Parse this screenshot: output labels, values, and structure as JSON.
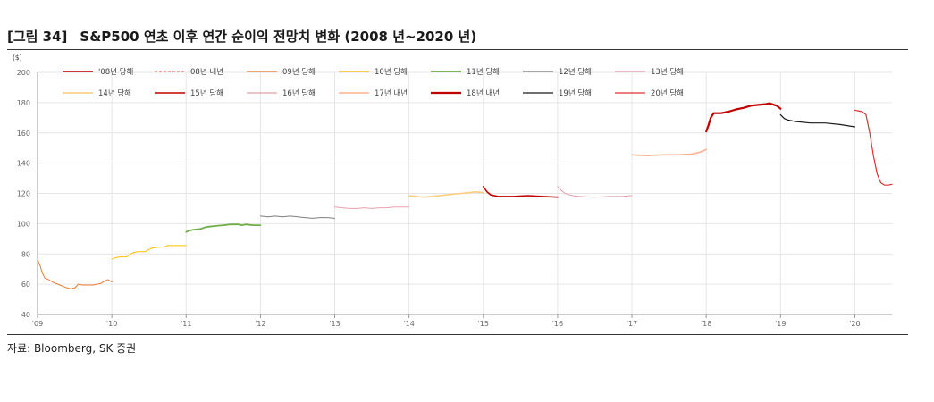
{
  "caption": {
    "figure_no": "[그림 34]",
    "title": "S&P500 연초 이후 연간 순이익 전망치 변화 (2008 년~2020 년)"
  },
  "source": "자료: Bloomberg, SK 증권",
  "chart_data": {
    "type": "line",
    "unit_label": "($)",
    "ylim": [
      40,
      200
    ],
    "yticks": [
      40,
      60,
      80,
      100,
      120,
      140,
      160,
      180,
      200
    ],
    "xlim": [
      2009,
      2020.5
    ],
    "xticks": [
      {
        "value": 2009,
        "label": "'09"
      },
      {
        "value": 2010,
        "label": "'10"
      },
      {
        "value": 2011,
        "label": "'11"
      },
      {
        "value": 2012,
        "label": "'12"
      },
      {
        "value": 2013,
        "label": "'13"
      },
      {
        "value": 2014,
        "label": "'14"
      },
      {
        "value": 2015,
        "label": "'15"
      },
      {
        "value": 2016,
        "label": "'16"
      },
      {
        "value": 2017,
        "label": "'17"
      },
      {
        "value": 2018,
        "label": "'18"
      },
      {
        "value": 2019,
        "label": "'19"
      },
      {
        "value": 2020,
        "label": "'20"
      }
    ],
    "grid": true,
    "legend_position": "top",
    "series": [
      {
        "name": "'08년 당해",
        "color": "#c00000",
        "width": 1.4,
        "dash": "",
        "points": []
      },
      {
        "name": "08년 내년",
        "color": "#f08080",
        "width": 1,
        "dash": "3,2",
        "points": []
      },
      {
        "name": "09년 당해",
        "color": "#ed7d31",
        "width": 1,
        "dash": "",
        "points": [
          [
            2009.0,
            76
          ],
          [
            2009.03,
            73
          ],
          [
            2009.06,
            68
          ],
          [
            2009.1,
            64
          ],
          [
            2009.15,
            63
          ],
          [
            2009.2,
            61.5
          ],
          [
            2009.25,
            60.5
          ],
          [
            2009.3,
            59.5
          ],
          [
            2009.35,
            58.5
          ],
          [
            2009.4,
            57.5
          ],
          [
            2009.45,
            57
          ],
          [
            2009.5,
            57.5
          ],
          [
            2009.55,
            60
          ],
          [
            2009.6,
            59.5
          ],
          [
            2009.65,
            59.5
          ],
          [
            2009.7,
            59.5
          ],
          [
            2009.75,
            59.5
          ],
          [
            2009.8,
            60
          ],
          [
            2009.85,
            60.5
          ],
          [
            2009.9,
            62
          ],
          [
            2009.95,
            63
          ],
          [
            2010.0,
            61.5
          ]
        ]
      },
      {
        "name": "10년 당해",
        "color": "#ffc000",
        "width": 1,
        "dash": "",
        "points": [
          [
            2010.0,
            76.5
          ],
          [
            2010.05,
            77.5
          ],
          [
            2010.1,
            78
          ],
          [
            2010.2,
            78
          ],
          [
            2010.25,
            80
          ],
          [
            2010.3,
            81
          ],
          [
            2010.35,
            81.5
          ],
          [
            2010.45,
            81.5
          ],
          [
            2010.5,
            83
          ],
          [
            2010.55,
            84
          ],
          [
            2010.65,
            84.5
          ],
          [
            2010.7,
            84.5
          ],
          [
            2010.75,
            85.5
          ],
          [
            2010.85,
            85.5
          ],
          [
            2010.95,
            85.5
          ],
          [
            2011.0,
            85.5
          ]
        ]
      },
      {
        "name": "11년 당해",
        "color": "#70ad47",
        "width": 1.8,
        "dash": "",
        "points": [
          [
            2011.0,
            94.5
          ],
          [
            2011.05,
            95.5
          ],
          [
            2011.1,
            96
          ],
          [
            2011.2,
            96.5
          ],
          [
            2011.25,
            97.5
          ],
          [
            2011.3,
            98
          ],
          [
            2011.4,
            98.5
          ],
          [
            2011.5,
            99
          ],
          [
            2011.6,
            99.5
          ],
          [
            2011.65,
            99.5
          ],
          [
            2011.7,
            99.5
          ],
          [
            2011.75,
            99
          ],
          [
            2011.8,
            99.5
          ],
          [
            2011.9,
            99
          ],
          [
            2012.0,
            99
          ]
        ]
      },
      {
        "name": "12년 당해",
        "color": "#7f7f7f",
        "width": 1,
        "dash": "",
        "points": [
          [
            2012.0,
            105
          ],
          [
            2012.1,
            104.5
          ],
          [
            2012.2,
            105
          ],
          [
            2012.3,
            104.5
          ],
          [
            2012.4,
            105
          ],
          [
            2012.5,
            104.5
          ],
          [
            2012.6,
            104
          ],
          [
            2012.7,
            103.5
          ],
          [
            2012.8,
            104
          ],
          [
            2012.9,
            104
          ],
          [
            2013.0,
            103.5
          ]
        ]
      },
      {
        "name": "13년 당해",
        "color": "#e8a0b0",
        "width": 1,
        "dash": "",
        "points": [
          [
            2013.0,
            111
          ],
          [
            2013.1,
            110.5
          ],
          [
            2013.2,
            110
          ],
          [
            2013.3,
            110
          ],
          [
            2013.4,
            110.5
          ],
          [
            2013.5,
            110
          ],
          [
            2013.6,
            110.5
          ],
          [
            2013.7,
            110.5
          ],
          [
            2013.8,
            111
          ],
          [
            2013.9,
            111
          ],
          [
            2014.0,
            111
          ]
        ]
      },
      {
        "name": "14년 당해",
        "color": "#ffcc80",
        "width": 1.6,
        "dash": "",
        "points": [
          [
            2014.0,
            118.5
          ],
          [
            2014.1,
            118
          ],
          [
            2014.2,
            117.5
          ],
          [
            2014.3,
            118
          ],
          [
            2014.4,
            118.5
          ],
          [
            2014.5,
            119
          ],
          [
            2014.6,
            119.5
          ],
          [
            2014.7,
            120
          ],
          [
            2014.8,
            120.5
          ],
          [
            2014.9,
            121
          ],
          [
            2015.0,
            120.5
          ]
        ]
      },
      {
        "name": "15년 당해",
        "color": "#c00000",
        "width": 1.6,
        "dash": "",
        "points": [
          [
            2015.0,
            124.5
          ],
          [
            2015.05,
            121
          ],
          [
            2015.1,
            119
          ],
          [
            2015.2,
            118
          ],
          [
            2015.4,
            118
          ],
          [
            2015.6,
            118.5
          ],
          [
            2015.8,
            118
          ],
          [
            2016.0,
            117.5
          ]
        ]
      },
      {
        "name": "16년 당해",
        "color": "#e0a0a8",
        "width": 1,
        "dash": "",
        "points": [
          [
            2016.0,
            124.5
          ],
          [
            2016.05,
            122
          ],
          [
            2016.1,
            120
          ],
          [
            2016.2,
            118.5
          ],
          [
            2016.3,
            118
          ],
          [
            2016.5,
            117.5
          ],
          [
            2016.7,
            118
          ],
          [
            2016.85,
            118
          ],
          [
            2017.0,
            118.5
          ]
        ]
      },
      {
        "name": "17년 내년",
        "color": "#ffb090",
        "width": 1.6,
        "dash": "",
        "points": [
          [
            2017.0,
            145.5
          ],
          [
            2017.2,
            145
          ],
          [
            2017.4,
            145.5
          ],
          [
            2017.6,
            145.5
          ],
          [
            2017.8,
            146
          ],
          [
            2017.9,
            147
          ],
          [
            2018.0,
            149
          ]
        ]
      },
      {
        "name": "18년 내년",
        "color": "#c00000",
        "width": 2.2,
        "dash": "",
        "points": [
          [
            2018.0,
            161
          ],
          [
            2018.03,
            165
          ],
          [
            2018.06,
            170
          ],
          [
            2018.1,
            173
          ],
          [
            2018.2,
            173
          ],
          [
            2018.3,
            174
          ],
          [
            2018.4,
            175.5
          ],
          [
            2018.5,
            176.5
          ],
          [
            2018.6,
            178
          ],
          [
            2018.7,
            178.5
          ],
          [
            2018.8,
            179
          ],
          [
            2018.85,
            179.5
          ],
          [
            2018.95,
            178
          ],
          [
            2019.0,
            176
          ]
        ]
      },
      {
        "name": "19년 당해",
        "color": "#1a1a1a",
        "width": 1.2,
        "dash": "",
        "points": [
          [
            2019.0,
            172
          ],
          [
            2019.05,
            169.5
          ],
          [
            2019.1,
            168.5
          ],
          [
            2019.2,
            167.5
          ],
          [
            2019.4,
            166.5
          ],
          [
            2019.6,
            166.5
          ],
          [
            2019.8,
            165.5
          ],
          [
            2020.0,
            164
          ]
        ]
      },
      {
        "name": "20년 당해",
        "color": "#e03030",
        "width": 1.2,
        "dash": "",
        "points": [
          [
            2020.0,
            175
          ],
          [
            2020.1,
            174
          ],
          [
            2020.15,
            172
          ],
          [
            2020.2,
            160
          ],
          [
            2020.25,
            145
          ],
          [
            2020.3,
            133
          ],
          [
            2020.35,
            127
          ],
          [
            2020.4,
            125.5
          ],
          [
            2020.45,
            125.5
          ],
          [
            2020.5,
            126
          ]
        ]
      }
    ]
  }
}
